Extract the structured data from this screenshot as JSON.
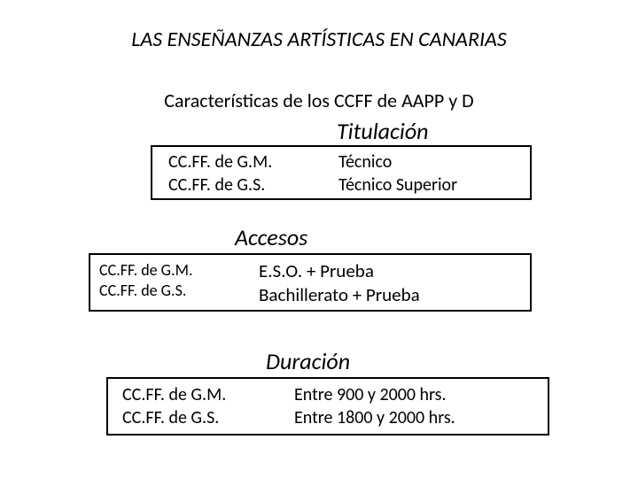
{
  "title": "LAS ENSEÑANZAS ARTÍSTICAS EN CANARIAS",
  "subtitle": "Características de los CCFF de AAPP y D",
  "section1": {
    "heading": "Titulación",
    "left_line1": "CC.FF. de G.M.",
    "left_line2": "CC.FF. de G.S.",
    "right_line1": "Técnico",
    "right_line2": "Técnico Superior"
  },
  "section2": {
    "heading": "Accesos",
    "left_line1": "CC.FF. de G.M.",
    "left_line2": "CC.FF. de G.S.",
    "right_line1": "E.S.O. + Prueba",
    "right_line2": "Bachillerato + Prueba"
  },
  "section3": {
    "heading": "Duración",
    "left_line1": "CC.FF. de G.M.",
    "left_line2": "CC.FF. de G.S.",
    "right_line1": "Entre 900 y 2000 hrs.",
    "right_line2": "Entre 1800 y 2000 hrs."
  },
  "colors": {
    "background": "#ffffff",
    "text": "#000000",
    "border": "#000000"
  },
  "typography": {
    "title_fontsize": 24,
    "subtitle_fontsize": 22,
    "heading_fontsize": 26,
    "body_fontsize": 20,
    "box2_left_fontsize": 18,
    "font_family": "Calibri"
  }
}
